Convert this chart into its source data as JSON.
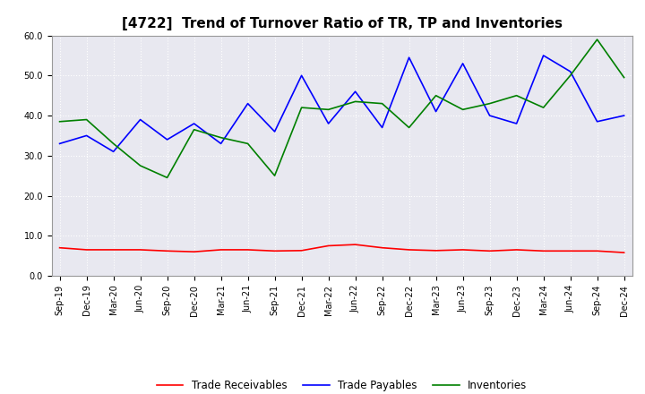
{
  "title": "[4722]  Trend of Turnover Ratio of TR, TP and Inventories",
  "x_labels": [
    "Sep-19",
    "Dec-19",
    "Mar-20",
    "Jun-20",
    "Sep-20",
    "Dec-20",
    "Mar-21",
    "Jun-21",
    "Sep-21",
    "Dec-21",
    "Mar-22",
    "Jun-22",
    "Sep-22",
    "Dec-22",
    "Mar-23",
    "Jun-23",
    "Sep-23",
    "Dec-23",
    "Mar-24",
    "Jun-24",
    "Sep-24",
    "Dec-24"
  ],
  "trade_receivables": [
    7.0,
    6.5,
    6.5,
    6.5,
    6.2,
    6.0,
    6.5,
    6.5,
    6.2,
    6.3,
    7.5,
    7.8,
    7.0,
    6.5,
    6.3,
    6.5,
    6.2,
    6.5,
    6.2,
    6.2,
    6.2,
    5.8
  ],
  "trade_payables": [
    33.0,
    35.0,
    31.0,
    39.0,
    34.0,
    38.0,
    33.0,
    43.0,
    36.0,
    50.0,
    38.0,
    46.0,
    37.0,
    54.5,
    41.0,
    53.0,
    40.0,
    38.0,
    55.0,
    51.0,
    38.5,
    40.0
  ],
  "inventories": [
    38.5,
    39.0,
    33.0,
    27.5,
    24.5,
    36.5,
    34.5,
    33.0,
    25.0,
    42.0,
    41.5,
    43.5,
    43.0,
    37.0,
    45.0,
    41.5,
    43.0,
    45.0,
    42.0,
    50.0,
    59.0,
    49.5
  ],
  "tr_color": "#ff0000",
  "tp_color": "#0000ff",
  "inv_color": "#008000",
  "ylim": [
    0.0,
    60.0
  ],
  "yticks": [
    0.0,
    10.0,
    20.0,
    30.0,
    40.0,
    50.0,
    60.0
  ],
  "background_color": "#ffffff",
  "plot_bg_color": "#e8e8f0",
  "grid_color": "#ffffff",
  "title_fontsize": 11,
  "tick_fontsize": 7,
  "legend_labels": [
    "Trade Receivables",
    "Trade Payables",
    "Inventories"
  ]
}
